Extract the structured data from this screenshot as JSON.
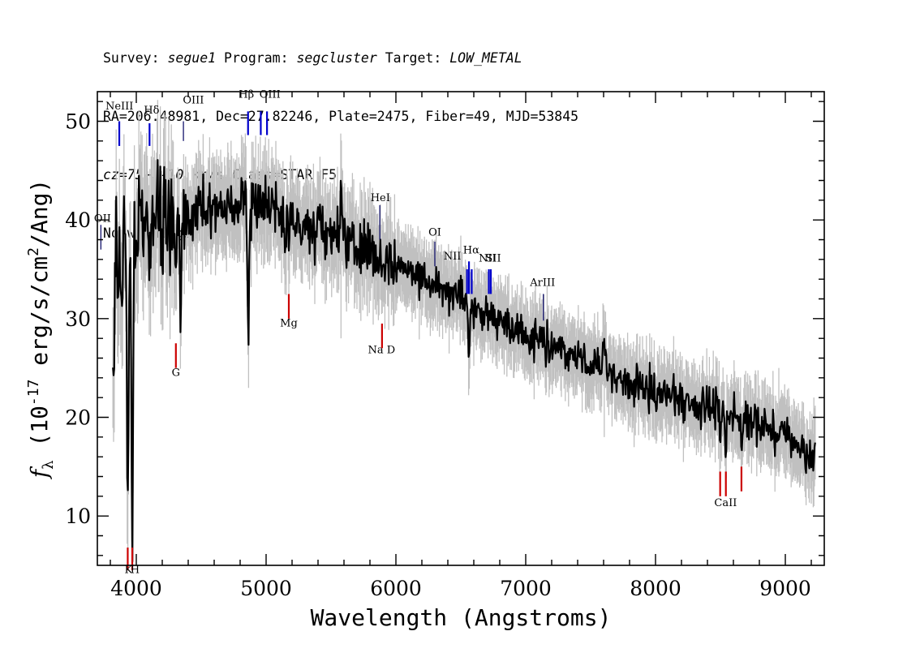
{
  "header": {
    "survey_label": "Survey:",
    "survey": "segue1",
    "program_label": "Program:",
    "program": "segcluster",
    "target_label": "Target:",
    "target": "LOW_METAL",
    "line2": "RA=206.48981, Dec=27.82246, Plate=2475, Fiber=49, MJD=53845",
    "cz": "cz=75+/-10",
    "cz_rest": " km/s Class=STAR F5",
    "line4": "No warnings."
  },
  "chart_data": {
    "type": "line",
    "xlabel": "Wavelength (Angstroms)",
    "ylabel_parts": {
      "f": "f",
      "sub": "λ",
      "pre": " (10",
      "exp": "-17",
      "mid": " erg/s/cm",
      "exp2": "2",
      "post": "/Ang)"
    },
    "xlim": [
      3700,
      9300
    ],
    "ylim": [
      5,
      53
    ],
    "x_ticks": [
      4000,
      5000,
      6000,
      7000,
      8000,
      9000
    ],
    "y_ticks": [
      10,
      20,
      30,
      40,
      50
    ],
    "colors": {
      "flux": "#000000",
      "error": "#c0c0c0",
      "emission": "#0000cc",
      "absorption": "#cc0000",
      "other": "#000060"
    },
    "continuum": [
      [
        3820,
        35
      ],
      [
        3900,
        39
      ],
      [
        4000,
        40
      ],
      [
        4200,
        40
      ],
      [
        4500,
        40.5
      ],
      [
        4800,
        41.5
      ],
      [
        4950,
        41.5
      ],
      [
        5200,
        40
      ],
      [
        5600,
        38
      ],
      [
        6000,
        35.5
      ],
      [
        6300,
        33.5
      ],
      [
        6600,
        31
      ],
      [
        7000,
        28.5
      ],
      [
        7500,
        25.5
      ],
      [
        8000,
        22.5
      ],
      [
        8500,
        20.5
      ],
      [
        9000,
        18.5
      ],
      [
        9230,
        16
      ]
    ],
    "features": [
      {
        "x": 3825,
        "depth": -10
      },
      {
        "x": 3860,
        "depth": -6
      },
      {
        "x": 3890,
        "depth": -7
      },
      {
        "x": 3934,
        "depth": -26
      },
      {
        "x": 3969,
        "depth": -30
      },
      {
        "x": 4102,
        "depth": -9
      },
      {
        "x": 4305,
        "depth": -6
      },
      {
        "x": 4341,
        "depth": -10
      },
      {
        "x": 4861,
        "depth": -14
      },
      {
        "x": 5175,
        "depth": -2
      },
      {
        "x": 5577,
        "depth": 7
      },
      {
        "x": 5893,
        "depth": -1.5
      },
      {
        "x": 6563,
        "depth": -7
      },
      {
        "x": 7605,
        "depth": 4
      },
      {
        "x": 8498,
        "depth": -3
      },
      {
        "x": 8542,
        "depth": -4
      },
      {
        "x": 8662,
        "depth": -3
      }
    ],
    "lines": [
      {
        "label": "NeIII",
        "x": 3869,
        "kind": "emission",
        "top": 50,
        "bottom": 47.5,
        "lx": 3870,
        "ly": 51.2
      },
      {
        "label": "Hδ",
        "x": 4102,
        "kind": "emission",
        "top": 49.8,
        "bottom": 47.5,
        "lx": 4118,
        "ly": 50.8
      },
      {
        "label": "OIII",
        "x": 4363,
        "kind": "other",
        "top": 50,
        "bottom": 48,
        "lx": 4440,
        "ly": 51.8
      },
      {
        "label": "Hβ",
        "x": 4861,
        "kind": "emission",
        "top": 51,
        "bottom": 48.6,
        "lx": 4848,
        "ly": 52.4
      },
      {
        "label": "OIII",
        "x": 4959,
        "kind": "emission",
        "top": 51,
        "bottom": 48.6,
        "lx": 5030,
        "ly": 52.4
      },
      {
        "label": "OIII",
        "x": 5007,
        "kind": "emission",
        "top": 51,
        "bottom": 48.6,
        "lx": null,
        "ly": null
      },
      {
        "label": "HeI",
        "x": 5876,
        "kind": "other",
        "top": 41.5,
        "bottom": 38,
        "lx": 5880,
        "ly": 41.9
      },
      {
        "label": "OI",
        "x": 6300,
        "kind": "other",
        "top": 37.8,
        "bottom": 35.3,
        "lx": 6300,
        "ly": 38.4
      },
      {
        "label": "NII",
        "x": 6548,
        "kind": "emission",
        "top": 35,
        "bottom": 32.5,
        "lx": 6435,
        "ly": 36
      },
      {
        "label": "Hα",
        "x": 6563,
        "kind": "emission",
        "top": 35.8,
        "bottom": 32.5,
        "lx": 6580,
        "ly": 36.6
      },
      {
        "label": "NII",
        "x": 6584,
        "kind": "emission",
        "top": 35,
        "bottom": 32.5,
        "lx": null,
        "ly": null
      },
      {
        "label": "NII",
        "x": 6716,
        "kind": "emission",
        "top": 35,
        "bottom": 32.5,
        "lx": 6705,
        "ly": 35.8
      },
      {
        "label": "SII",
        "x": 6731,
        "kind": "emission",
        "top": 35,
        "bottom": 32.5,
        "lx": 6750,
        "ly": 35.8
      },
      {
        "label": "ArIII",
        "x": 7136,
        "kind": "other",
        "top": 32.5,
        "bottom": 29.8,
        "lx": 7130,
        "ly": 33.3
      },
      {
        "label": "OII",
        "x": 3727,
        "kind": "other",
        "top": 39.5,
        "bottom": 37,
        "lx": 3740,
        "ly": 39.8
      },
      {
        "label": "K",
        "x": 3934,
        "kind": "absorption",
        "top": 6.8,
        "bottom": 4.5,
        "lx": 3940,
        "ly": 4.2
      },
      {
        "label": "H",
        "x": 3969,
        "kind": "absorption",
        "top": 6.8,
        "bottom": 4.5,
        "lx": 3990,
        "ly": 4.2
      },
      {
        "label": "G",
        "x": 4305,
        "kind": "absorption",
        "top": 27.5,
        "bottom": 25,
        "lx": 4305,
        "ly": 24.2
      },
      {
        "label": "Mg",
        "x": 5175,
        "kind": "absorption",
        "top": 32.5,
        "bottom": 30,
        "lx": 5175,
        "ly": 29.2
      },
      {
        "label": "Na D",
        "x": 5893,
        "kind": "absorption",
        "top": 29.5,
        "bottom": 27,
        "lx": 5890,
        "ly": 26.5
      },
      {
        "label": "CaII",
        "x": 8498,
        "kind": "absorption",
        "top": 14.5,
        "bottom": 12,
        "lx": 8540,
        "ly": 11
      },
      {
        "label": "",
        "x": 8542,
        "kind": "absorption",
        "top": 14.5,
        "bottom": 12,
        "lx": null,
        "ly": null
      },
      {
        "label": "",
        "x": 8662,
        "kind": "absorption",
        "top": 15,
        "bottom": 12.5,
        "lx": null,
        "ly": null
      }
    ]
  }
}
